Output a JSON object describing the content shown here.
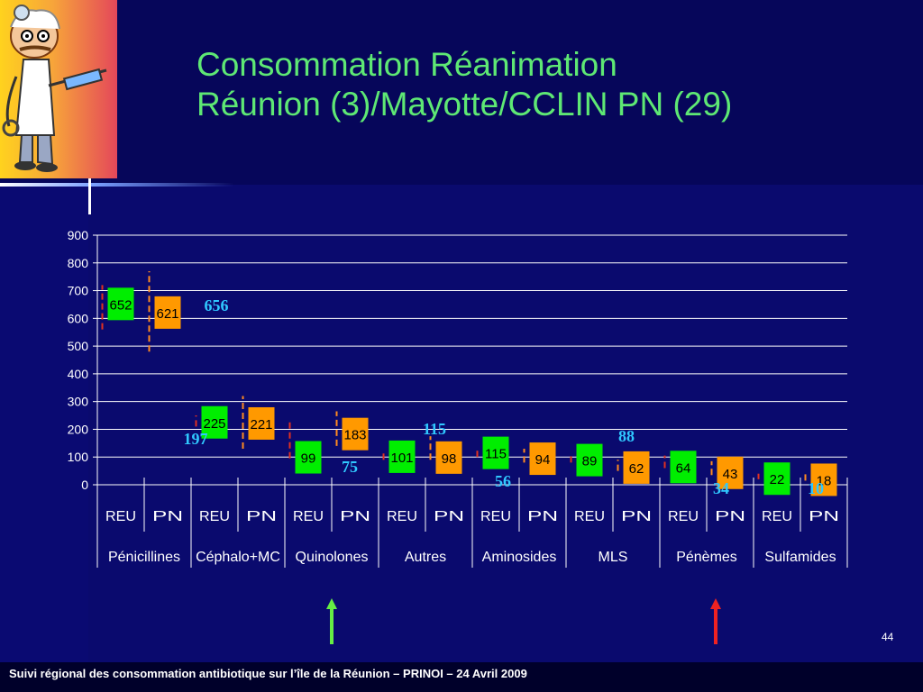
{
  "title": {
    "line1": "Consommation  Réanimation",
    "line2": "Réunion (3)/Mayotte/CCLIN PN (29)"
  },
  "footer": "Suivi régional des consommation antibiotique sur l’île de la Réunion – PRINOI – 24  Avril  2009",
  "slide_number": "44",
  "colors": {
    "reu": "#00ee00",
    "pn": "#ff9900",
    "whisker_red": "#e03020",
    "whisker_orange": "#ff8a20",
    "title": "#5ee874",
    "annotation": "#30c8ff",
    "arrow_green": "#66ee44",
    "arrow_red": "#ee2222"
  },
  "chart_data": {
    "type": "bar",
    "ylim": [
      0,
      900
    ],
    "yticks": [
      "0",
      "100",
      "200",
      "300",
      "400",
      "500",
      "600",
      "700",
      "800",
      "900"
    ],
    "grid": true,
    "sub_labels": [
      "REU",
      "PN"
    ],
    "categories": [
      "Pénicillines",
      "Céphalo+MC",
      "Quinolones",
      "Autres",
      "Aminosides",
      "MLS",
      "Pénèmes",
      "Sulfamides"
    ],
    "series": [
      {
        "name": "REU",
        "values": [
          652,
          225,
          99,
          101,
          115,
          89,
          64,
          22
        ]
      },
      {
        "name": "PN",
        "values": [
          621,
          221,
          183,
          98,
          94,
          62,
          43,
          18
        ]
      }
    ],
    "whiskers": {
      "REU": [
        [
          560,
          720
        ],
        [
          210,
          250
        ],
        [
          95,
          235
        ],
        [
          90,
          125
        ],
        [
          100,
          135
        ],
        [
          80,
          115
        ],
        [
          60,
          105
        ],
        [
          20,
          40
        ]
      ],
      "PN": [
        [
          480,
          770
        ],
        [
          130,
          320
        ],
        [
          140,
          265
        ],
        [
          90,
          175
        ],
        [
          80,
          130
        ],
        [
          50,
          90
        ],
        [
          35,
          85
        ],
        [
          15,
          45
        ]
      ]
    },
    "annotations": [
      {
        "text": "656",
        "value": 656
      },
      {
        "text": "197",
        "value": 197
      },
      {
        "text": "75",
        "value": 75
      },
      {
        "text": "115",
        "value": 115
      },
      {
        "text": "56",
        "value": 56
      },
      {
        "text": "88",
        "value": 88
      },
      {
        "text": "34",
        "value": 34
      },
      {
        "text": "10",
        "value": 10
      }
    ]
  }
}
